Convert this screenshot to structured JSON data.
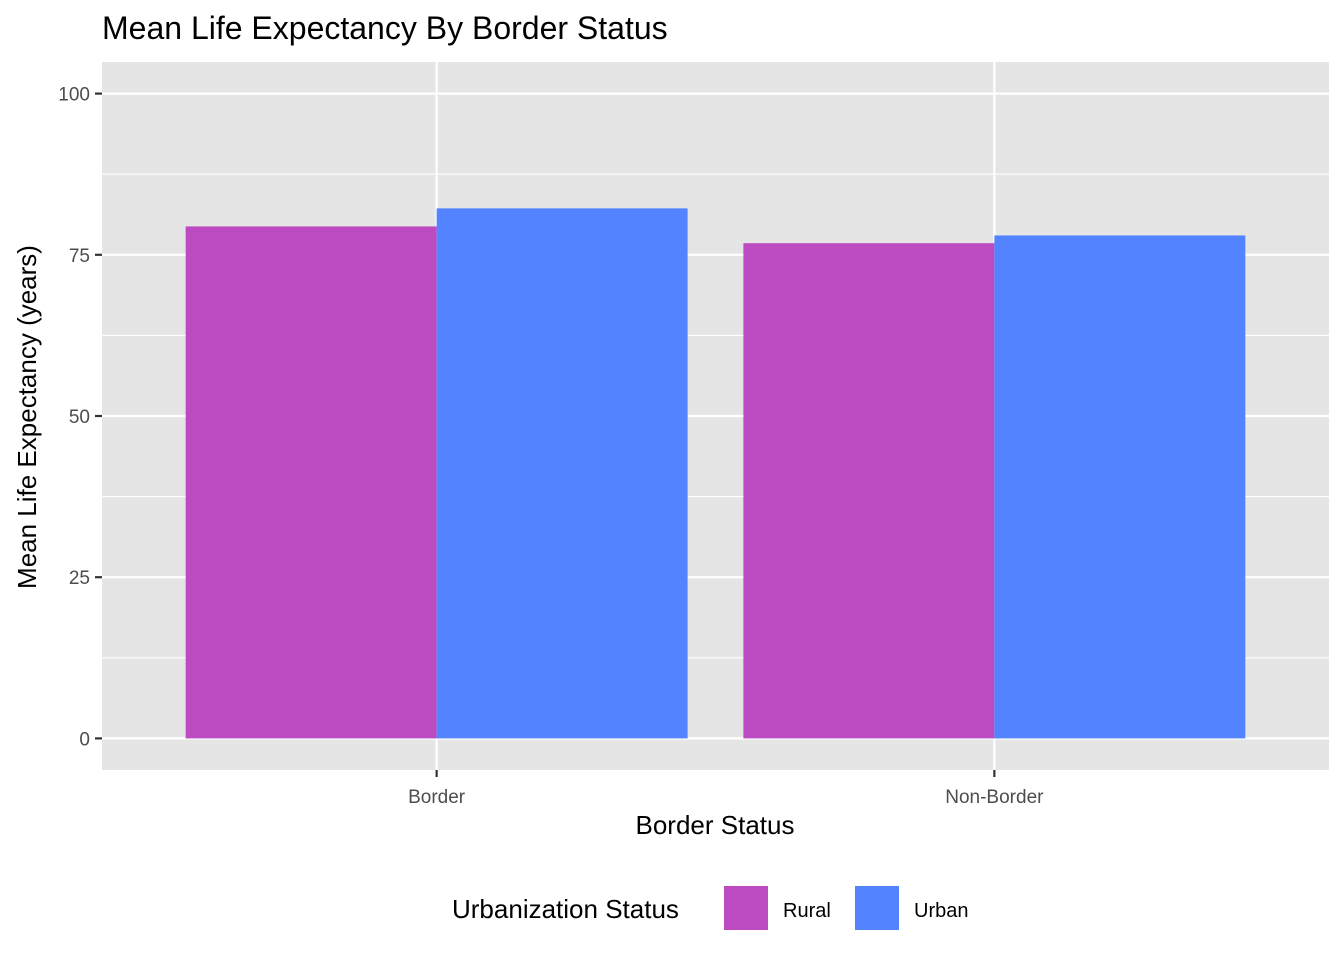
{
  "chart_data": {
    "type": "bar",
    "title": "Mean Life Expectancy By Border Status",
    "xlabel": "Border Status",
    "ylabel": "Mean Life Expectancy (years)",
    "categories": [
      "Border",
      "Non-Border"
    ],
    "series": [
      {
        "name": "Rural",
        "values": [
          79.4,
          76.8
        ],
        "color": "#BC4BC1"
      },
      {
        "name": "Urban",
        "values": [
          82.2,
          78.0
        ],
        "color": "#5383FF"
      }
    ],
    "ylim": [
      -4.9,
      104.9
    ],
    "yticks": [
      0,
      25,
      50,
      75,
      100
    ],
    "grid": true,
    "panel_background": "#E5E5E5",
    "legend": {
      "title": "Urbanization Status",
      "position": "bottom"
    }
  }
}
